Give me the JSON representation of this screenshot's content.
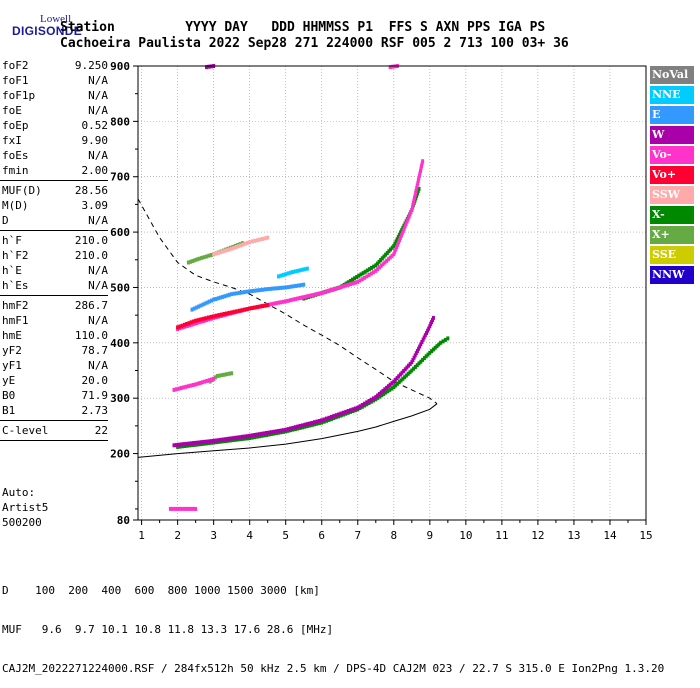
{
  "logo": {
    "top": "Lowell",
    "main": "DIGISONDE"
  },
  "header": {
    "line1": "Station         YYYY DAY   DDD HHMMSS P1  FFS S AXN PPS IGA PS",
    "line2": "Cachoeira Paulista 2022 Sep28 271 224000 RSF 005 2 713 100 03+ 36"
  },
  "params": [
    {
      "label": "foF2",
      "value": "9.250"
    },
    {
      "label": "foF1",
      "value": "N/A"
    },
    {
      "label": "foF1p",
      "value": "N/A"
    },
    {
      "label": "foE",
      "value": "N/A"
    },
    {
      "label": "foEp",
      "value": "0.52"
    },
    {
      "label": "fxI",
      "value": "9.90"
    },
    {
      "label": "foEs",
      "value": "N/A"
    },
    {
      "label": "fmin",
      "value": "2.00"
    },
    {
      "sep": true
    },
    {
      "label": "MUF(D)",
      "value": "28.56"
    },
    {
      "label": "M(D)",
      "value": "3.09"
    },
    {
      "label": "D",
      "value": "N/A"
    },
    {
      "sep": true
    },
    {
      "label": "h`F",
      "value": "210.0"
    },
    {
      "label": "h`F2",
      "value": "210.0"
    },
    {
      "label": "h`E",
      "value": "N/A"
    },
    {
      "label": "h`Es",
      "value": "N/A"
    },
    {
      "sep": true
    },
    {
      "label": "hmF2",
      "value": "286.7"
    },
    {
      "label": "hmF1",
      "value": "N/A"
    },
    {
      "label": "hmE",
      "value": "110.0"
    },
    {
      "label": "yF2",
      "value": "78.7"
    },
    {
      "label": "yF1",
      "value": "N/A"
    },
    {
      "label": "yE",
      "value": "20.0"
    },
    {
      "label": "B0",
      "value": "71.9"
    },
    {
      "label": "B1",
      "value": "2.73"
    },
    {
      "sep": true
    },
    {
      "label": "C-level",
      "value": "22"
    },
    {
      "sep": true
    }
  ],
  "auto": {
    "line1": "Auto:",
    "line2": "Artist5",
    "line3": "500200"
  },
  "legend": [
    {
      "label": "NoVal",
      "color": "#808080"
    },
    {
      "label": "NNE",
      "color": "#00ccff"
    },
    {
      "label": "E",
      "color": "#3399ff"
    },
    {
      "label": "W",
      "color": "#aa00aa"
    },
    {
      "label": "Vo-",
      "color": "#ff33cc"
    },
    {
      "label": "Vo+",
      "color": "#ff0033"
    },
    {
      "label": "SSW",
      "color": "#ffaaaa"
    },
    {
      "label": "X-",
      "color": "#008800"
    },
    {
      "label": "X+",
      "color": "#66aa44"
    },
    {
      "label": "SSE",
      "color": "#cccc00"
    },
    {
      "label": "NNW",
      "color": "#2200cc"
    }
  ],
  "footer": {
    "line1": "D    100  200  400  600  800 1000 1500 3000 [km]",
    "line2": "MUF   9.6  9.7 10.1 10.8 11.8 13.3 17.6 28.6 [MHz]",
    "line3": "CAJ2M_2022271224000.RSF / 284fx512h 50 kHz 2.5 km / DPS-4D CAJ2M 023 / 22.7 S 315.0 E Ion2Png 1.3.20"
  },
  "chart_data": {
    "type": "scatter",
    "xlim": [
      0.9,
      15
    ],
    "ylim": [
      80,
      900
    ],
    "x_ticks": [
      1,
      2,
      3,
      4,
      5,
      6,
      7,
      8,
      9,
      10,
      11,
      12,
      13,
      14,
      15
    ],
    "y_ticks": [
      80,
      200,
      300,
      400,
      500,
      600,
      700,
      800,
      900
    ],
    "grid": true,
    "profile_solid": [
      [
        0.9,
        193
      ],
      [
        2,
        200
      ],
      [
        3,
        205
      ],
      [
        4,
        210
      ],
      [
        5,
        217
      ],
      [
        6,
        227
      ],
      [
        7,
        240
      ],
      [
        7.5,
        248
      ],
      [
        8,
        258
      ],
      [
        8.5,
        268
      ],
      [
        9,
        280
      ],
      [
        9.2,
        290
      ]
    ],
    "profile_dashed": [
      [
        0.9,
        660
      ],
      [
        1.5,
        590
      ],
      [
        2,
        545
      ],
      [
        2.5,
        522
      ],
      [
        3,
        510
      ],
      [
        3.5,
        500
      ],
      [
        4,
        488
      ],
      [
        4.5,
        470
      ],
      [
        5,
        452
      ],
      [
        5.5,
        432
      ],
      [
        6,
        414
      ],
      [
        6.5,
        395
      ],
      [
        7,
        373
      ],
      [
        7.5,
        352
      ],
      [
        8,
        330
      ],
      [
        8.5,
        315
      ],
      [
        9,
        300
      ],
      [
        9.2,
        290
      ]
    ],
    "traces": [
      {
        "name": "X-",
        "color": "#008800",
        "points": [
          [
            2.0,
            212
          ],
          [
            3,
            220
          ],
          [
            4,
            228
          ],
          [
            5,
            240
          ],
          [
            6,
            256
          ],
          [
            7,
            280
          ],
          [
            7.5,
            298
          ],
          [
            8,
            320
          ],
          [
            8.5,
            350
          ],
          [
            9,
            382
          ],
          [
            9.3,
            400
          ],
          [
            9.5,
            408
          ]
        ]
      },
      {
        "name": "W",
        "color": "#aa00aa",
        "points": [
          [
            1.9,
            215
          ],
          [
            3,
            223
          ],
          [
            4,
            232
          ],
          [
            5,
            243
          ],
          [
            6,
            260
          ],
          [
            7,
            283
          ],
          [
            7.5,
            302
          ],
          [
            8,
            330
          ],
          [
            8.5,
            365
          ],
          [
            9,
            430
          ],
          [
            9.1,
            445
          ]
        ]
      },
      {
        "name": "X-",
        "color": "#008800",
        "points": [
          [
            5.5,
            480
          ],
          [
            6.5,
            500
          ],
          [
            7.5,
            540
          ],
          [
            8,
            575
          ],
          [
            8.5,
            640
          ],
          [
            8.7,
            678
          ]
        ]
      },
      {
        "name": "Vo-",
        "color": "#ff33cc",
        "points": [
          [
            2.0,
            425
          ],
          [
            3,
            445
          ],
          [
            4,
            462
          ],
          [
            5,
            475
          ],
          [
            6,
            490
          ],
          [
            7,
            510
          ],
          [
            7.5,
            530
          ],
          [
            8,
            560
          ],
          [
            8.5,
            640
          ],
          [
            8.8,
            728
          ]
        ]
      },
      {
        "name": "E",
        "color": "#3399ff",
        "points": [
          [
            2.4,
            460
          ],
          [
            3,
            478
          ],
          [
            3.5,
            488
          ],
          [
            4,
            493
          ],
          [
            4.5,
            497
          ],
          [
            5,
            500
          ],
          [
            5.5,
            505
          ]
        ]
      },
      {
        "name": "Vo+",
        "color": "#ff0033",
        "points": [
          [
            2.0,
            428
          ],
          [
            2.5,
            440
          ],
          [
            3,
            448
          ],
          [
            3.5,
            455
          ],
          [
            4,
            462
          ],
          [
            4.5,
            468
          ]
        ]
      },
      {
        "name": "X+",
        "color": "#66aa44",
        "points": [
          [
            2.9,
            330
          ],
          [
            3.1,
            340
          ],
          [
            3.5,
            345
          ]
        ]
      },
      {
        "name": "Vo-",
        "color": "#ff33cc",
        "points": [
          [
            1.9,
            315
          ],
          [
            2.5,
            325
          ],
          [
            3,
            335
          ]
        ]
      },
      {
        "name": "X+",
        "color": "#66aa44",
        "points": [
          [
            2.3,
            545
          ],
          [
            2.6,
            552
          ],
          [
            3,
            560
          ],
          [
            3.4,
            570
          ],
          [
            3.8,
            580
          ]
        ]
      },
      {
        "name": "Vo-",
        "color": "#ff33cc",
        "points": [
          [
            1.8,
            100
          ],
          [
            2.5,
            100
          ]
        ]
      },
      {
        "name": "SSW",
        "color": "#ffaaaa",
        "points": [
          [
            3.0,
            560
          ],
          [
            3.5,
            570
          ],
          [
            4,
            582
          ],
          [
            4.5,
            590
          ]
        ]
      },
      {
        "name": "NNE",
        "color": "#00ccff",
        "points": [
          [
            4.8,
            520
          ],
          [
            5.2,
            528
          ],
          [
            5.6,
            534
          ]
        ]
      },
      {
        "name": "W",
        "color": "#aa00aa",
        "points": [
          [
            2.8,
            898
          ],
          [
            3.0,
            900
          ]
        ]
      },
      {
        "name": "Vo-",
        "color": "#ff33cc",
        "points": [
          [
            7.9,
            898
          ],
          [
            8.1,
            900
          ]
        ]
      }
    ]
  }
}
